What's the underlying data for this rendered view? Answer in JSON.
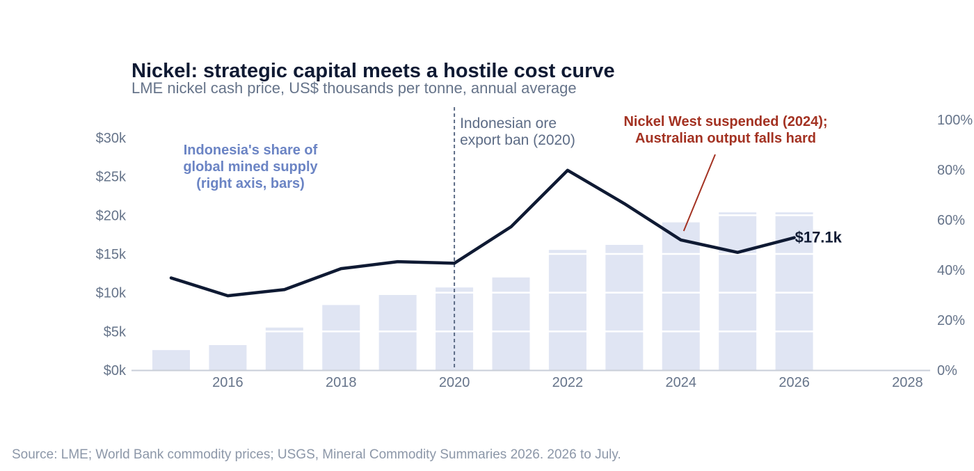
{
  "title": "Nickel: strategic capital meets a hostile cost curve",
  "subtitle": "LME nickel cash price, US$ thousands per tonne, annual average",
  "source": "Source: LME; World Bank commodity prices; USGS, Mineral Commodity Summaries 2026. 2026 to July.",
  "colors": {
    "line": "#0f1a33",
    "bars": "#e0e5f3",
    "annotation_red": "#a33222",
    "annotation_blue": "#6b84c4",
    "vline": "#5d6c86",
    "axis": "#c9ced8"
  },
  "chart_data": {
    "type": "bar+line",
    "x_ticks": [
      "2016",
      "2018",
      "2020",
      "2022",
      "2024",
      "2026",
      "2028"
    ],
    "xlim": [
      2014.3,
      2028.4
    ],
    "y_left": {
      "ticks": [
        "$0k",
        "$5k",
        "$10k",
        "$15k",
        "$20k",
        "$25k",
        "$30k"
      ],
      "ylim": [
        0,
        30
      ]
    },
    "y_right": {
      "ticks": [
        "0%",
        "20%",
        "40%",
        "60%",
        "80%",
        "100%"
      ],
      "ylim": [
        0,
        100
      ]
    },
    "series": [
      {
        "kind": "line",
        "axis": "left",
        "x": [
          2015,
          2016,
          2017,
          2018,
          2019,
          2020,
          2021,
          2022,
          2023,
          2024,
          2025,
          2026
        ],
        "values": [
          11.9,
          9.6,
          10.4,
          13.1,
          14.0,
          13.8,
          18.5,
          25.8,
          21.5,
          16.8,
          15.2,
          17.1
        ]
      },
      {
        "kind": "bar",
        "axis": "right",
        "x": [
          2015,
          2016,
          2017,
          2018,
          2019,
          2020,
          2021,
          2022,
          2023,
          2024,
          2025,
          2026
        ],
        "values": [
          8,
          10,
          17,
          26,
          30,
          33,
          37,
          48,
          50,
          59,
          63,
          63
        ]
      }
    ],
    "annotations": {
      "ban_line_year": 2020,
      "ban_label": [
        "Indonesian ore",
        "export ban (2020)"
      ],
      "nickel_west_label": [
        "Nickel West suspended (2024);",
        "Australian output falls hard"
      ],
      "indonesia_share_label": [
        "Indonesia's share of",
        "global mined supply",
        "(right axis, bars)"
      ],
      "end_label": "$17.1k"
    }
  }
}
